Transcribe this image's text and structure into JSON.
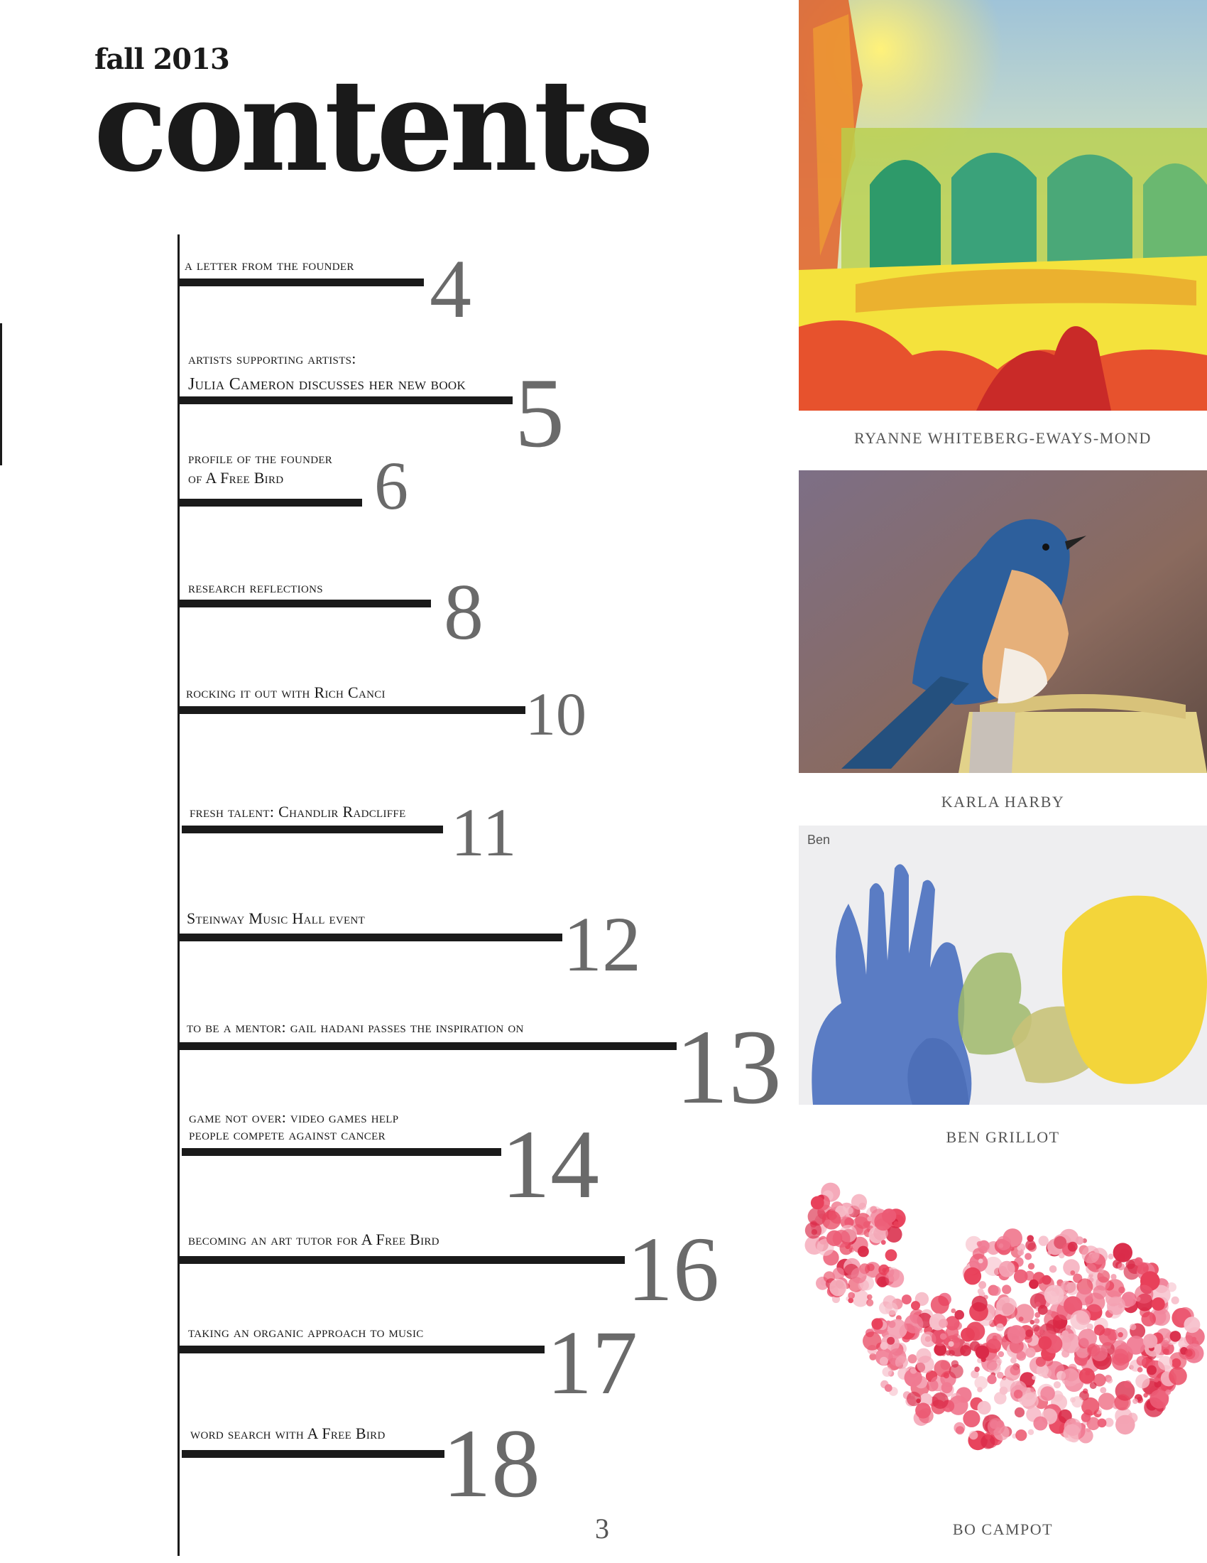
{
  "header": {
    "season": "fall 2013",
    "title": "contents"
  },
  "entries": [
    {
      "label": "a letter from the founder",
      "page": "4"
    },
    {
      "label_line1": "artists supporting artists:",
      "label_line2": "Julia Cameron discusses her new book",
      "page": "5"
    },
    {
      "label_line1": "profile of the founder",
      "label_line2": "of A Free Bird",
      "page": "6"
    },
    {
      "label": "research reflections",
      "page": "8"
    },
    {
      "label": "rocking it out with Rich Canci",
      "page": "10"
    },
    {
      "label": "fresh talent: Chandlir Radcliffe",
      "page": "11"
    },
    {
      "label": "Steinway Music Hall event",
      "page": "12"
    },
    {
      "label": "to be a mentor: gail hadani passes the inspiration on",
      "page": "13"
    },
    {
      "label_line1": "game not over: video games help",
      "label_line2": "people compete against cancer",
      "page": "14"
    },
    {
      "label": "becoming an art tutor for A Free Bird",
      "page": "16"
    },
    {
      "label": "taking an organic approach to music",
      "page": "17"
    },
    {
      "label": "word search with A Free Bird",
      "page": "18"
    }
  ],
  "artworks": [
    {
      "artist": "RYANNE WHITEBERG-EWAYS-MOND",
      "subject": "watercolor-garden-arches"
    },
    {
      "artist": "KARLA HARBY",
      "subject": "bluebird-painting"
    },
    {
      "artist": "BEN GRILLOT",
      "subject": "handprint-painting",
      "signature": "Ben"
    },
    {
      "artist": "BO CAMPOT",
      "subject": "pink-dot-whale"
    }
  ],
  "page_number": "3"
}
